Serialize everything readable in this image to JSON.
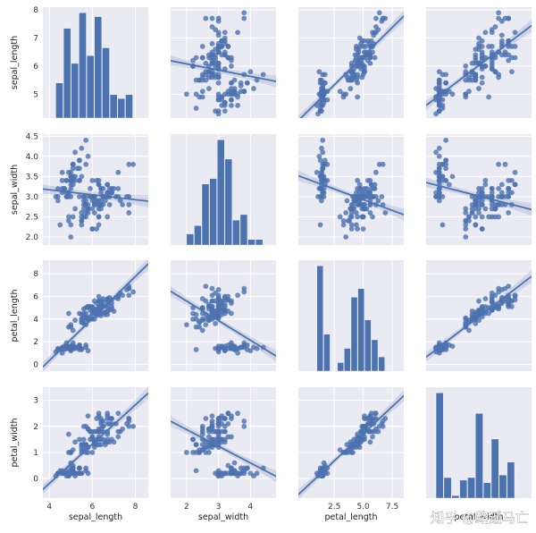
{
  "watermark": "知乎 @路遥马亡",
  "colors": {
    "background": "#ffffff",
    "panel": "#eaeaf2",
    "grid": "#ffffff",
    "mark": "#4c72b0",
    "ci_band": "#4c72b0"
  },
  "chart_data": {
    "type": "scatter",
    "grid": true,
    "variables": [
      "sepal_length",
      "sepal_width",
      "petal_length",
      "petal_width"
    ],
    "axes": {
      "sepal_length": {
        "label": "sepal_length",
        "range": [
          3.7,
          8.6
        ],
        "ticks": [
          4,
          6,
          8
        ],
        "tick_labels": [
          "4",
          "6",
          "8"
        ],
        "row_range": [
          4.15,
          8.1
        ],
        "row_ticks": [
          5,
          6,
          7,
          8
        ],
        "row_tick_labels": [
          "5",
          "6",
          "7",
          "8"
        ]
      },
      "sepal_width": {
        "label": "sepal_width",
        "range": [
          1.5,
          4.8
        ],
        "ticks": [
          2,
          3,
          4
        ],
        "tick_labels": [
          "2",
          "3",
          "4"
        ],
        "row_range": [
          1.8,
          4.55
        ],
        "row_ticks": [
          2.0,
          2.5,
          3.0,
          3.5,
          4.0,
          4.5
        ],
        "row_tick_labels": [
          "2.0",
          "2.5",
          "3.0",
          "3.5",
          "4.0",
          "4.5"
        ]
      },
      "petal_length": {
        "label": "petal_length",
        "range": [
          -0.6,
          8.5
        ],
        "ticks": [
          2.5,
          5.0,
          7.5
        ],
        "tick_labels": [
          "2.5",
          "5.0",
          "7.5"
        ],
        "row_range": [
          -0.6,
          9.2
        ],
        "row_ticks": [
          0,
          2,
          4,
          6,
          8
        ],
        "row_tick_labels": [
          "0",
          "2",
          "4",
          "6",
          "8"
        ]
      },
      "petal_width": {
        "label": "petal_width",
        "range": [
          -0.2,
          3.0
        ],
        "ticks": [],
        "tick_labels": [],
        "row_range": [
          -0.75,
          3.5
        ],
        "row_ticks": [
          0,
          1,
          2,
          3
        ],
        "row_tick_labels": [
          "0",
          "1",
          "2",
          "3"
        ]
      }
    },
    "histograms": [
      {
        "variable": "sepal_length",
        "bin_edges": [
          4.3,
          4.66,
          5.02,
          5.38,
          5.74,
          6.1,
          6.46,
          6.82,
          7.18,
          7.54,
          7.9
        ],
        "counts": [
          9,
          23,
          14,
          27,
          16,
          26,
          18,
          6,
          5,
          6
        ]
      },
      {
        "variable": "sepal_width",
        "bin_edges": [
          2.0,
          2.24,
          2.48,
          2.72,
          2.96,
          3.2,
          3.44,
          3.68,
          3.92,
          4.16,
          4.4
        ],
        "counts": [
          4,
          7,
          22,
          24,
          38,
          31,
          9,
          11,
          2,
          2
        ]
      },
      {
        "variable": "petal_length",
        "bin_edges": [
          1.0,
          1.59,
          2.18,
          2.77,
          3.36,
          3.95,
          4.54,
          5.13,
          5.72,
          6.31,
          6.9
        ],
        "counts": [
          37,
          13,
          0,
          3,
          8,
          26,
          29,
          18,
          11,
          5
        ]
      },
      {
        "variable": "petal_width",
        "bin_edges": [
          0.1,
          0.34,
          0.58,
          0.82,
          1.06,
          1.3,
          1.54,
          1.78,
          2.02,
          2.26,
          2.5
        ],
        "counts": [
          41,
          8,
          1,
          7,
          8,
          33,
          6,
          23,
          9,
          14
        ]
      }
    ],
    "regression_lines": [
      {
        "x": "sepal_width",
        "y": "sepal_length",
        "slope": -0.223,
        "intercept": 6.526
      },
      {
        "x": "petal_length",
        "y": "sepal_length",
        "slope": 0.409,
        "intercept": 4.307
      },
      {
        "x": "petal_width",
        "y": "sepal_length",
        "slope": 0.889,
        "intercept": 4.778
      },
      {
        "x": "sepal_length",
        "y": "sepal_width",
        "slope": -0.062,
        "intercept": 3.419
      },
      {
        "x": "petal_length",
        "y": "sepal_width",
        "slope": -0.106,
        "intercept": 3.454
      },
      {
        "x": "petal_width",
        "y": "sepal_width",
        "slope": -0.21,
        "intercept": 3.309
      },
      {
        "x": "sepal_length",
        "y": "petal_length",
        "slope": 1.858,
        "intercept": -7.101
      },
      {
        "x": "sepal_width",
        "y": "petal_length",
        "slope": -1.735,
        "intercept": 9.063
      },
      {
        "x": "petal_width",
        "y": "petal_length",
        "slope": 2.23,
        "intercept": 1.084
      },
      {
        "x": "sepal_length",
        "y": "petal_width",
        "slope": 0.753,
        "intercept": -3.2
      },
      {
        "x": "sepal_width",
        "y": "petal_width",
        "slope": -0.64,
        "intercept": 3.157
      },
      {
        "x": "petal_length",
        "y": "petal_width",
        "slope": 0.416,
        "intercept": -0.363
      }
    ],
    "samples": [
      [
        5.1,
        3.5,
        1.4,
        0.2
      ],
      [
        4.9,
        3.0,
        1.4,
        0.2
      ],
      [
        4.7,
        3.2,
        1.3,
        0.2
      ],
      [
        4.6,
        3.1,
        1.5,
        0.2
      ],
      [
        5.0,
        3.6,
        1.4,
        0.2
      ],
      [
        5.4,
        3.9,
        1.7,
        0.4
      ],
      [
        4.6,
        3.4,
        1.4,
        0.3
      ],
      [
        5.0,
        3.4,
        1.5,
        0.2
      ],
      [
        4.4,
        2.9,
        1.4,
        0.2
      ],
      [
        4.9,
        3.1,
        1.5,
        0.1
      ],
      [
        5.4,
        3.7,
        1.5,
        0.2
      ],
      [
        4.8,
        3.4,
        1.6,
        0.2
      ],
      [
        4.8,
        3.0,
        1.4,
        0.1
      ],
      [
        4.3,
        3.0,
        1.1,
        0.1
      ],
      [
        5.8,
        4.0,
        1.2,
        0.2
      ],
      [
        5.7,
        4.4,
        1.5,
        0.4
      ],
      [
        5.4,
        3.9,
        1.3,
        0.4
      ],
      [
        5.1,
        3.5,
        1.4,
        0.3
      ],
      [
        5.7,
        3.8,
        1.7,
        0.3
      ],
      [
        5.1,
        3.8,
        1.5,
        0.3
      ],
      [
        5.4,
        3.4,
        1.7,
        0.2
      ],
      [
        5.1,
        3.7,
        1.5,
        0.4
      ],
      [
        4.6,
        3.6,
        1.0,
        0.2
      ],
      [
        5.1,
        3.3,
        1.7,
        0.5
      ],
      [
        4.8,
        3.4,
        1.9,
        0.2
      ],
      [
        5.0,
        3.0,
        1.6,
        0.2
      ],
      [
        5.0,
        3.4,
        1.6,
        0.4
      ],
      [
        5.2,
        3.5,
        1.5,
        0.2
      ],
      [
        5.2,
        3.4,
        1.4,
        0.2
      ],
      [
        4.7,
        3.2,
        1.6,
        0.2
      ],
      [
        4.8,
        3.1,
        1.6,
        0.2
      ],
      [
        5.4,
        3.4,
        1.5,
        0.4
      ],
      [
        5.2,
        4.1,
        1.5,
        0.1
      ],
      [
        5.5,
        4.2,
        1.4,
        0.2
      ],
      [
        4.9,
        3.1,
        1.5,
        0.2
      ],
      [
        5.0,
        3.2,
        1.2,
        0.2
      ],
      [
        5.5,
        3.5,
        1.3,
        0.2
      ],
      [
        4.9,
        3.6,
        1.4,
        0.1
      ],
      [
        4.4,
        3.0,
        1.3,
        0.2
      ],
      [
        5.1,
        3.4,
        1.5,
        0.2
      ],
      [
        5.0,
        3.5,
        1.3,
        0.3
      ],
      [
        4.5,
        2.3,
        1.3,
        0.3
      ],
      [
        4.4,
        3.2,
        1.3,
        0.2
      ],
      [
        5.0,
        3.5,
        1.6,
        0.6
      ],
      [
        5.1,
        3.8,
        1.9,
        0.4
      ],
      [
        4.8,
        3.0,
        1.4,
        0.3
      ],
      [
        5.1,
        3.8,
        1.6,
        0.2
      ],
      [
        4.6,
        3.2,
        1.4,
        0.2
      ],
      [
        5.3,
        3.7,
        1.5,
        0.2
      ],
      [
        5.0,
        3.3,
        1.4,
        0.2
      ],
      [
        7.0,
        3.2,
        4.7,
        1.4
      ],
      [
        6.4,
        3.2,
        4.5,
        1.5
      ],
      [
        6.9,
        3.1,
        4.9,
        1.5
      ],
      [
        5.5,
        2.3,
        4.0,
        1.3
      ],
      [
        6.5,
        2.8,
        4.6,
        1.5
      ],
      [
        5.7,
        2.8,
        4.5,
        1.3
      ],
      [
        6.3,
        3.3,
        4.7,
        1.6
      ],
      [
        4.9,
        2.4,
        3.3,
        1.0
      ],
      [
        6.6,
        2.9,
        4.6,
        1.3
      ],
      [
        5.2,
        2.7,
        3.9,
        1.4
      ],
      [
        5.0,
        2.0,
        3.5,
        1.0
      ],
      [
        5.9,
        3.0,
        4.2,
        1.5
      ],
      [
        6.0,
        2.2,
        4.0,
        1.0
      ],
      [
        6.1,
        2.9,
        4.7,
        1.4
      ],
      [
        5.6,
        2.9,
        3.6,
        1.3
      ],
      [
        6.7,
        3.1,
        4.4,
        1.4
      ],
      [
        5.6,
        3.0,
        4.5,
        1.5
      ],
      [
        5.8,
        2.7,
        4.1,
        1.0
      ],
      [
        6.2,
        2.2,
        4.5,
        1.5
      ],
      [
        5.6,
        2.5,
        3.9,
        1.1
      ],
      [
        5.9,
        3.2,
        4.8,
        1.8
      ],
      [
        6.1,
        2.8,
        4.0,
        1.3
      ],
      [
        6.3,
        2.5,
        4.9,
        1.5
      ],
      [
        6.1,
        2.8,
        4.7,
        1.2
      ],
      [
        6.4,
        2.9,
        4.3,
        1.3
      ],
      [
        6.6,
        3.0,
        4.4,
        1.4
      ],
      [
        6.8,
        2.8,
        4.8,
        1.4
      ],
      [
        6.7,
        3.0,
        5.0,
        1.7
      ],
      [
        6.0,
        2.9,
        4.5,
        1.5
      ],
      [
        5.7,
        2.6,
        3.5,
        1.0
      ],
      [
        5.5,
        2.4,
        3.8,
        1.1
      ],
      [
        5.5,
        2.4,
        3.7,
        1.0
      ],
      [
        5.8,
        2.7,
        3.9,
        1.2
      ],
      [
        6.0,
        2.7,
        5.1,
        1.6
      ],
      [
        5.4,
        3.0,
        4.5,
        1.5
      ],
      [
        6.0,
        3.4,
        4.5,
        1.6
      ],
      [
        6.7,
        3.1,
        4.7,
        1.5
      ],
      [
        6.3,
        2.3,
        4.4,
        1.3
      ],
      [
        5.6,
        3.0,
        4.1,
        1.3
      ],
      [
        5.5,
        2.5,
        4.0,
        1.3
      ],
      [
        5.5,
        2.6,
        4.4,
        1.2
      ],
      [
        6.1,
        3.0,
        4.6,
        1.4
      ],
      [
        5.8,
        2.6,
        4.0,
        1.2
      ],
      [
        5.0,
        2.3,
        3.3,
        1.0
      ],
      [
        5.6,
        2.7,
        4.2,
        1.3
      ],
      [
        5.7,
        3.0,
        4.2,
        1.2
      ],
      [
        5.7,
        2.9,
        4.2,
        1.3
      ],
      [
        6.2,
        2.9,
        4.3,
        1.3
      ],
      [
        5.1,
        2.5,
        3.0,
        1.1
      ],
      [
        5.7,
        2.8,
        4.1,
        1.3
      ],
      [
        6.3,
        3.3,
        6.0,
        2.5
      ],
      [
        5.8,
        2.7,
        5.1,
        1.9
      ],
      [
        7.1,
        3.0,
        5.9,
        2.1
      ],
      [
        6.3,
        2.9,
        5.6,
        1.8
      ],
      [
        6.5,
        3.0,
        5.8,
        2.2
      ],
      [
        7.6,
        3.0,
        6.6,
        2.1
      ],
      [
        4.9,
        2.5,
        4.5,
        1.7
      ],
      [
        7.3,
        2.9,
        6.3,
        1.8
      ],
      [
        6.7,
        2.5,
        5.8,
        1.8
      ],
      [
        7.2,
        3.6,
        6.1,
        2.5
      ],
      [
        6.5,
        3.2,
        5.1,
        2.0
      ],
      [
        6.4,
        2.7,
        5.3,
        1.9
      ],
      [
        6.8,
        3.0,
        5.5,
        2.1
      ],
      [
        5.7,
        2.5,
        5.0,
        2.0
      ],
      [
        5.8,
        2.8,
        5.1,
        2.4
      ],
      [
        6.4,
        3.2,
        5.3,
        2.3
      ],
      [
        6.5,
        3.0,
        5.5,
        1.8
      ],
      [
        7.7,
        3.8,
        6.7,
        2.2
      ],
      [
        7.7,
        2.6,
        6.9,
        2.3
      ],
      [
        6.0,
        2.2,
        5.0,
        1.5
      ],
      [
        6.9,
        3.2,
        5.7,
        2.3
      ],
      [
        5.6,
        2.8,
        4.9,
        2.0
      ],
      [
        7.7,
        2.8,
        6.7,
        2.0
      ],
      [
        6.3,
        2.7,
        4.9,
        1.8
      ],
      [
        6.7,
        3.3,
        5.7,
        2.1
      ],
      [
        7.2,
        3.2,
        6.0,
        1.8
      ],
      [
        6.2,
        2.8,
        4.8,
        1.8
      ],
      [
        6.1,
        3.0,
        4.9,
        1.8
      ],
      [
        6.4,
        2.8,
        5.6,
        2.1
      ],
      [
        7.2,
        3.0,
        5.8,
        1.6
      ],
      [
        7.4,
        2.8,
        6.1,
        1.9
      ],
      [
        7.9,
        3.8,
        6.4,
        2.0
      ],
      [
        6.4,
        2.8,
        5.6,
        2.2
      ],
      [
        6.3,
        2.8,
        5.1,
        1.5
      ],
      [
        6.1,
        2.6,
        5.6,
        1.4
      ],
      [
        7.7,
        3.0,
        6.1,
        2.3
      ],
      [
        6.3,
        3.4,
        5.6,
        2.4
      ],
      [
        6.4,
        3.1,
        5.5,
        1.8
      ],
      [
        6.0,
        3.0,
        4.8,
        1.8
      ],
      [
        6.9,
        3.1,
        5.4,
        2.1
      ],
      [
        6.7,
        3.1,
        5.6,
        2.4
      ],
      [
        6.9,
        3.1,
        5.1,
        2.3
      ],
      [
        5.8,
        2.7,
        5.1,
        1.9
      ],
      [
        6.8,
        3.2,
        5.9,
        2.3
      ],
      [
        6.7,
        3.3,
        5.7,
        2.5
      ],
      [
        6.7,
        3.0,
        5.2,
        2.3
      ],
      [
        6.3,
        2.5,
        5.0,
        1.9
      ],
      [
        6.5,
        3.0,
        5.2,
        2.0
      ],
      [
        6.2,
        3.4,
        5.4,
        2.3
      ],
      [
        5.9,
        3.0,
        5.1,
        1.8
      ]
    ]
  }
}
